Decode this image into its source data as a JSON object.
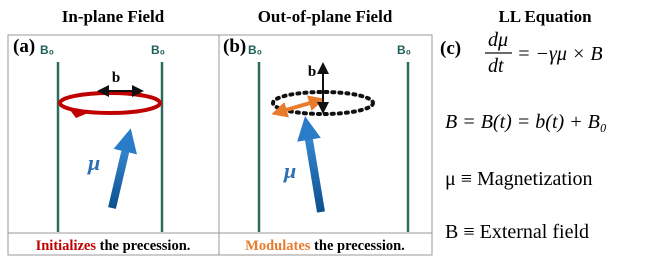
{
  "header": {
    "titles": [
      "In-plane Field",
      "Out-of-plane Field",
      "LL Equation"
    ]
  },
  "panels": [
    {
      "label": "(a)",
      "field_labels": [
        "B₀",
        "B₀"
      ],
      "drive_label": "b",
      "moment_label": "μ",
      "caption": {
        "highlight": "Initializes",
        "rest": "the precession."
      }
    },
    {
      "label": "(b)",
      "field_labels": [
        "B₀",
        "B₀"
      ],
      "drive_label": "b",
      "moment_label": "μ",
      "caption": {
        "highlight": "Modulates",
        "rest": "the precession."
      }
    }
  ],
  "equations": {
    "label": "(c)",
    "ll": {
      "numerator": "dμ",
      "denominator": "dt",
      "rhs": "= −γμ × B"
    },
    "lines": [
      "B = B(t) = b(t) + B₀",
      "μ ≡ Magnetization",
      "B ≡ External field"
    ]
  }
}
